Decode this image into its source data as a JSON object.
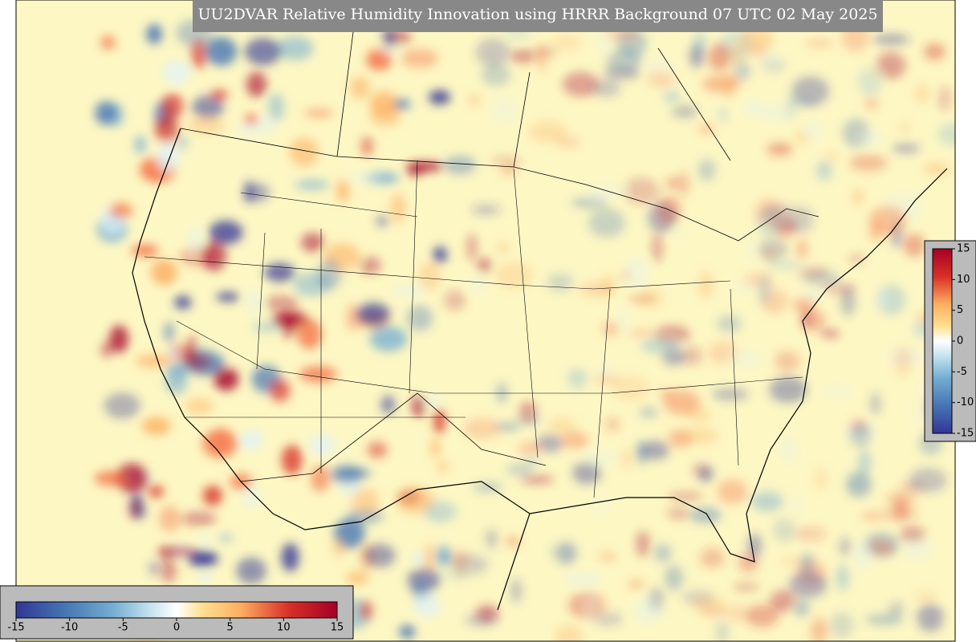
{
  "title": "UU2DVAR Relative Humidity Innovation using HRRR Background 07 UTC 02 May 2025",
  "colorbar_horizontal": {
    "range": [
      -15,
      15
    ],
    "ticks": [
      -15,
      -10,
      -5,
      0,
      5,
      10,
      15
    ]
  },
  "colorbar_vertical": {
    "range": [
      -15,
      15
    ],
    "ticks": [
      -15,
      -10,
      -5,
      0,
      5,
      10,
      15
    ]
  }
}
